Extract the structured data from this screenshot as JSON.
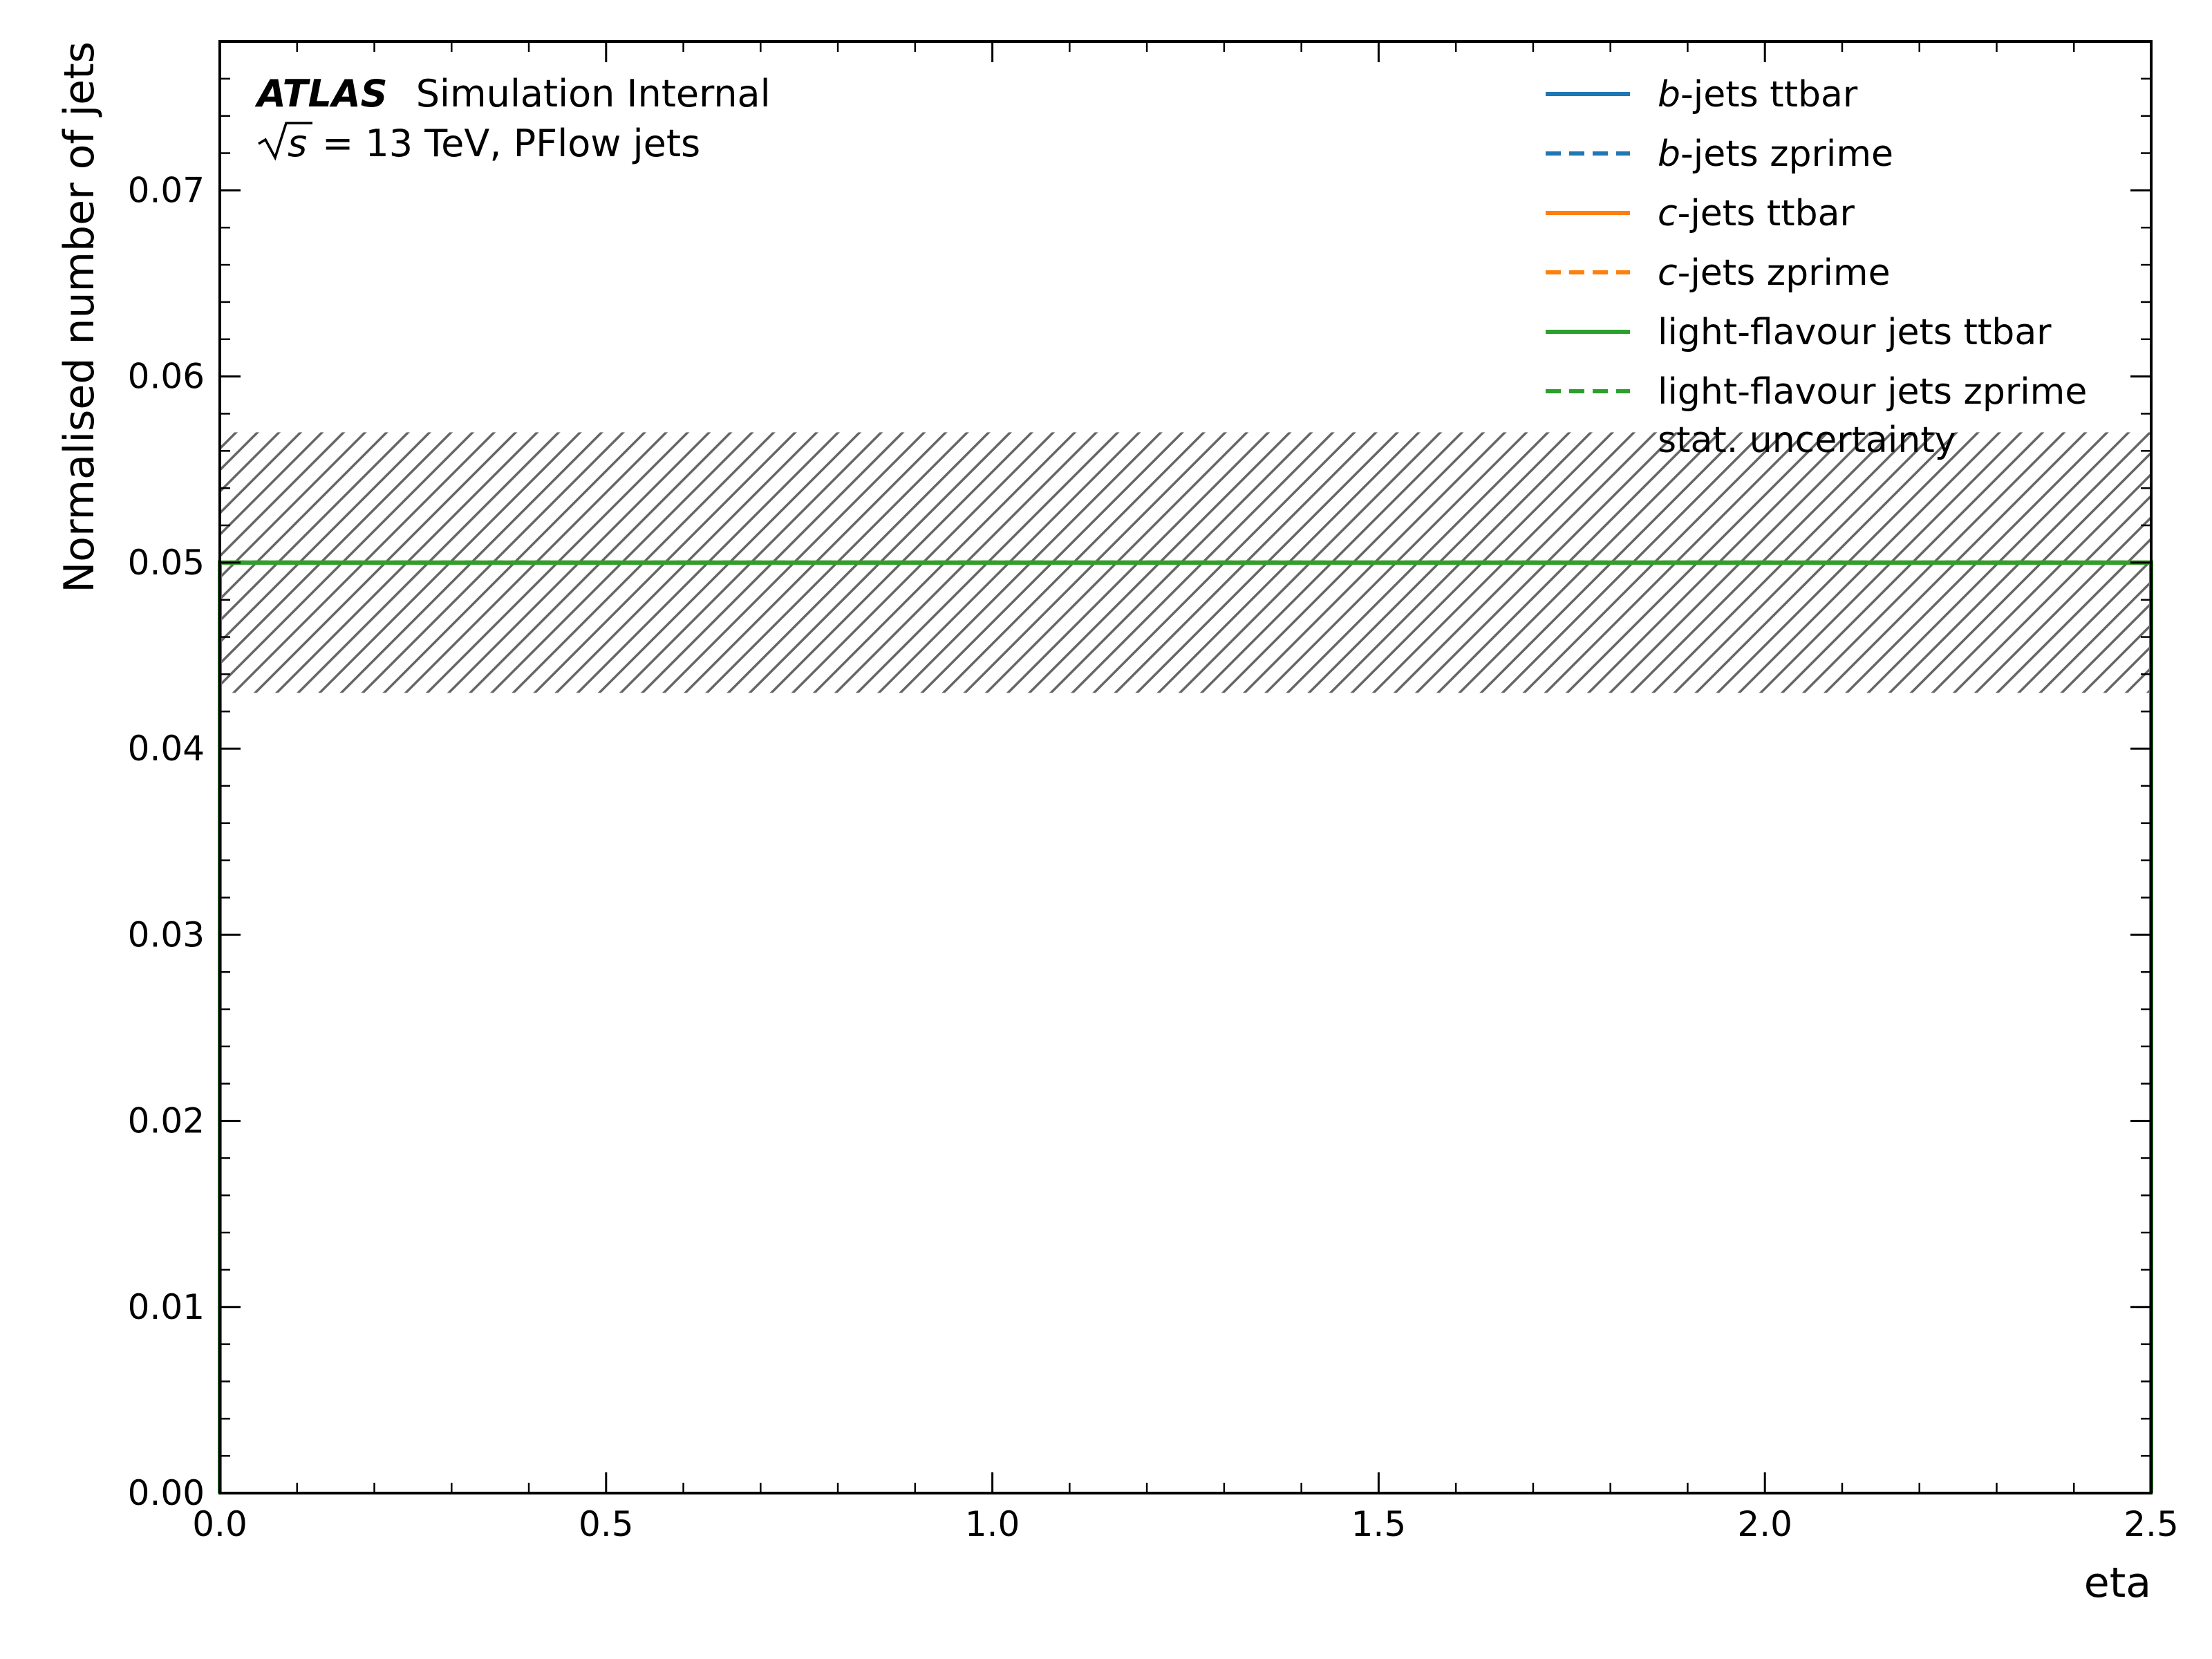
{
  "chart_data": {
    "type": "line",
    "atlas_label": "ATLAS",
    "atlas_sublabel": "Simulation Internal",
    "energy_label": "= 13 TeV, PFlow jets",
    "energy_sqrt_symbol": "s",
    "xlabel": "eta",
    "ylabel": "Normalised number of jets",
    "xlim": [
      0.0,
      2.5
    ],
    "ylim": [
      0.0,
      0.078
    ],
    "x_ticks": [
      0.0,
      0.5,
      1.0,
      1.5,
      2.0,
      2.5
    ],
    "x_tick_labels": [
      "0.0",
      "0.5",
      "1.0",
      "1.5",
      "2.0",
      "2.5"
    ],
    "y_ticks": [
      0.0,
      0.01,
      0.02,
      0.03,
      0.04,
      0.05,
      0.06,
      0.07
    ],
    "y_tick_labels": [
      "0.00",
      "0.01",
      "0.02",
      "0.03",
      "0.04",
      "0.05",
      "0.06",
      "0.07"
    ],
    "grid": false,
    "legend_position": "top-right",
    "series": [
      {
        "name_prefix": "b",
        "name_suffix": "-jets ttbar",
        "color": "#1f77b4",
        "style": "solid",
        "x": [
          0.0,
          2.5
        ],
        "y": [
          0.05,
          0.05
        ]
      },
      {
        "name_prefix": "b",
        "name_suffix": "-jets zprime",
        "color": "#1f77b4",
        "style": "dashed",
        "x": [
          0.0,
          2.5
        ],
        "y": [
          0.05,
          0.05
        ]
      },
      {
        "name_prefix": "c",
        "name_suffix": "-jets ttbar",
        "color": "#ff7f0e",
        "style": "solid",
        "x": [
          0.0,
          2.5
        ],
        "y": [
          0.05,
          0.05
        ]
      },
      {
        "name_prefix": "c",
        "name_suffix": "-jets zprime",
        "color": "#ff7f0e",
        "style": "dashed",
        "x": [
          0.0,
          2.5
        ],
        "y": [
          0.05,
          0.05
        ]
      },
      {
        "name_prefix": "",
        "name_suffix": "light-flavour jets ttbar",
        "color": "#2ca02c",
        "style": "solid",
        "x": [
          0.0,
          2.5
        ],
        "y": [
          0.05,
          0.05
        ]
      },
      {
        "name_prefix": "",
        "name_suffix": "light-flavour jets zprime",
        "color": "#2ca02c",
        "style": "dashed",
        "x": [
          0.0,
          2.5
        ],
        "y": [
          0.05,
          0.05
        ]
      }
    ],
    "uncertainty_band": {
      "name": "stat. uncertainty",
      "x": [
        0.0,
        2.5
      ],
      "y_low": 0.043,
      "y_high": 0.057,
      "color": "#666666"
    }
  }
}
